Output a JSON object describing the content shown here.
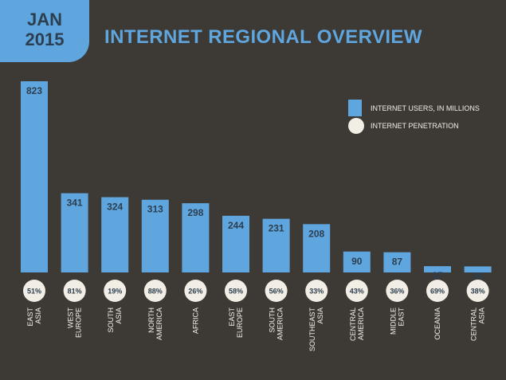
{
  "header": {
    "month": "JAN",
    "year": "2015",
    "title": "INTERNET REGIONAL OVERVIEW"
  },
  "legend": {
    "users_label": "INTERNET USERS, IN MILLIONS",
    "penetration_label": "INTERNET PENETRATION"
  },
  "colors": {
    "background": "#3d3a36",
    "bar": "#5fa6df",
    "circle": "#f2eee6",
    "text_dark": "#2c3e4f"
  },
  "chart_data": {
    "type": "bar",
    "categories": [
      [
        "EAST",
        "ASIA"
      ],
      [
        "WEST",
        "EUROPE"
      ],
      [
        "SOUTH",
        "ASIA"
      ],
      [
        "NORTH",
        "AMERICA"
      ],
      [
        "AFRICA"
      ],
      [
        "EAST",
        "EUROPE"
      ],
      [
        "SOUTH",
        "AMERICA"
      ],
      [
        "SOUTHEAST",
        "ASIA"
      ],
      [
        "CENTRAL",
        "AMERICA"
      ],
      [
        "MIDDLE",
        "EAST"
      ],
      [
        "OCEANIA"
      ],
      [
        "CENTRAL",
        "ASIA"
      ]
    ],
    "series": [
      {
        "values": [
          823,
          341,
          324,
          313,
          298,
          244,
          231,
          208,
          90,
          87,
          27,
          26
        ]
      },
      {
        "values": [
          "51%",
          "81%",
          "19%",
          "88%",
          "26%",
          "58%",
          "56%",
          "33%",
          "43%",
          "36%",
          "69%",
          "38%"
        ]
      }
    ]
  }
}
